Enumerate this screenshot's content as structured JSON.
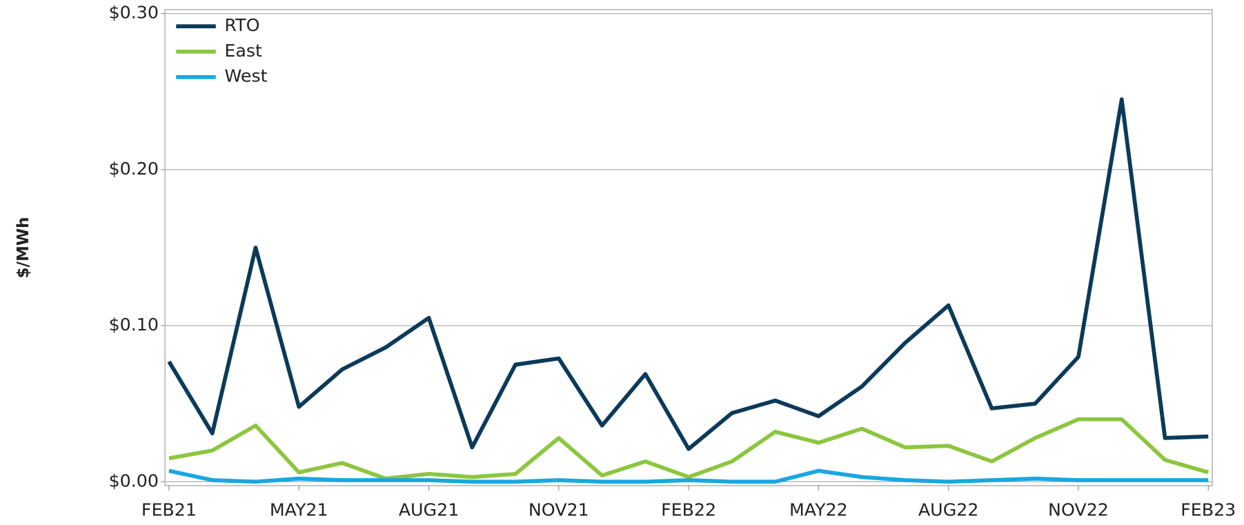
{
  "chart_data": {
    "type": "line",
    "y_axis_label": "$/MWh",
    "categories": [
      "FEB21",
      null,
      null,
      "MAY21",
      null,
      null,
      "AUG21",
      null,
      null,
      "NOV21",
      null,
      null,
      "FEB22",
      null,
      null,
      "MAY22",
      null,
      null,
      "AUG22",
      null,
      null,
      "NOV22",
      null,
      null,
      "FEB23"
    ],
    "series": [
      {
        "name": "RTO",
        "color": "#0b3a5a",
        "values": [
          0.077,
          0.031,
          0.15,
          0.048,
          0.072,
          0.086,
          0.105,
          0.022,
          0.075,
          0.079,
          0.036,
          0.069,
          0.021,
          0.044,
          0.052,
          0.042,
          0.061,
          0.089,
          0.113,
          0.047,
          0.05,
          0.08,
          0.245,
          0.028,
          0.029
        ]
      },
      {
        "name": "East",
        "color": "#8cc63f",
        "values": [
          0.015,
          0.02,
          0.036,
          0.006,
          0.012,
          0.002,
          0.005,
          0.003,
          0.005,
          0.028,
          0.004,
          0.013,
          0.003,
          0.013,
          0.032,
          0.025,
          0.034,
          0.022,
          0.023,
          0.013,
          0.028,
          0.04,
          0.04,
          0.014,
          0.006
        ]
      },
      {
        "name": "West",
        "color": "#1aa7e0",
        "values": [
          0.007,
          0.001,
          0.0,
          0.002,
          0.001,
          0.001,
          0.001,
          0.0,
          0.0,
          0.001,
          0.0,
          0.0,
          0.001,
          0.0,
          0.0,
          0.007,
          0.003,
          0.001,
          0.0,
          0.001,
          0.002,
          0.001,
          0.001,
          0.001,
          0.001
        ]
      }
    ],
    "ylim": [
      -0.0025,
      0.3025
    ],
    "yticks": [
      {
        "value": 0,
        "label": "$0.00"
      },
      {
        "value": 0.1,
        "label": "$0.10"
      },
      {
        "value": 0.2,
        "label": "$0.20"
      },
      {
        "value": 0.3,
        "label": "$0.30"
      }
    ],
    "grid": true,
    "legend": "upper left"
  }
}
